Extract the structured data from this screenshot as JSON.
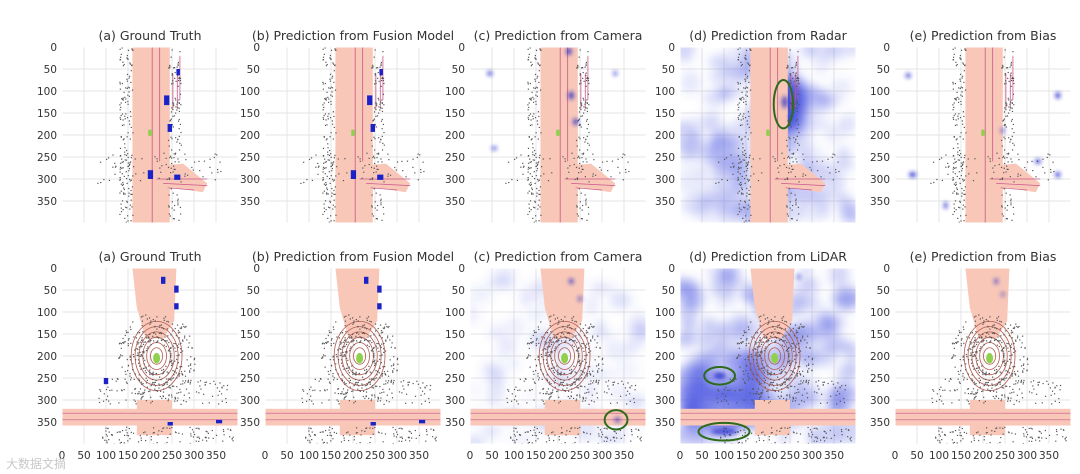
{
  "figure": {
    "rows": [
      {
        "panels": [
          {
            "title": "(a) Ground Truth",
            "kind": "gt",
            "scene": "A"
          },
          {
            "title": "(b) Prediction from Fusion Model",
            "kind": "fusion",
            "scene": "A"
          },
          {
            "title": "(c) Prediction from Camera",
            "kind": "camera",
            "scene": "A"
          },
          {
            "title": "(d) Prediction from Radar",
            "kind": "sensor",
            "scene": "A"
          },
          {
            "title": "(e) Prediction from Bias",
            "kind": "bias",
            "scene": "A"
          }
        ]
      },
      {
        "panels": [
          {
            "title": "(a) Ground Truth",
            "kind": "gt",
            "scene": "B"
          },
          {
            "title": "(b) Prediction from Fusion Model",
            "kind": "fusion",
            "scene": "B"
          },
          {
            "title": "(c) Prediction from Camera",
            "kind": "camera",
            "scene": "B"
          },
          {
            "title": "(d) Prediction from LiDAR",
            "kind": "sensor",
            "scene": "B"
          },
          {
            "title": "(e) Prediction from Bias",
            "kind": "bias",
            "scene": "B"
          }
        ]
      }
    ],
    "x_ticks": [
      0,
      50,
      100,
      150,
      200,
      250,
      300,
      350
    ],
    "y_ticks": [
      0,
      50,
      100,
      150,
      200,
      250,
      300,
      350
    ],
    "axis_range": [
      0,
      400
    ],
    "colors": {
      "road": "#f8c7b8",
      "lane_marking": "#c9578a",
      "vehicle": "#1a22c8",
      "heatmap": "#4a55e0",
      "points": "#555555",
      "ego": "#8fd14f",
      "highlight": "#2e6b1a",
      "grid": "#e4e4e4"
    },
    "highlights": [
      {
        "row": 0,
        "panel": 3,
        "cx": 235,
        "cy": 130,
        "rx": 22,
        "ry": 55
      },
      {
        "row": 1,
        "panel": 2,
        "cx": 332,
        "cy": 345,
        "rx": 26,
        "ry": 22
      },
      {
        "row": 1,
        "panel": 3,
        "cx": 90,
        "cy": 245,
        "rx": 35,
        "ry": 20
      },
      {
        "row": 1,
        "panel": 3,
        "cx": 100,
        "cy": 372,
        "rx": 58,
        "ry": 20
      }
    ]
  },
  "watermark": "大数据文摘"
}
